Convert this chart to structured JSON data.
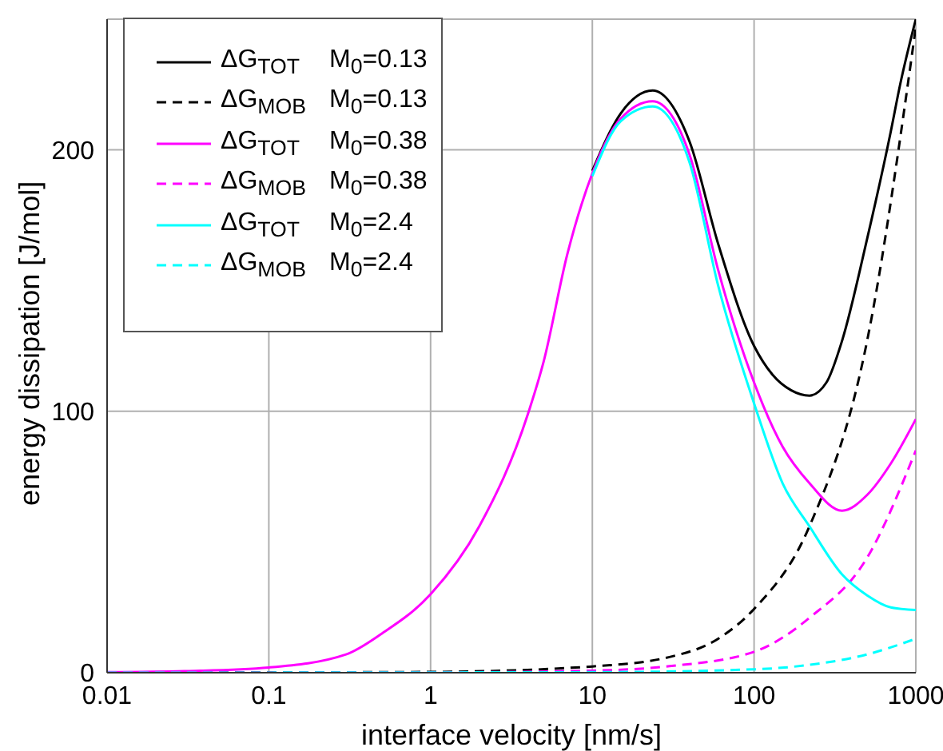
{
  "chart_data": {
    "type": "line",
    "xlabel": "interface velocity [nm/s]",
    "ylabel": "energy dissipation [J/mol]",
    "log": "x",
    "xlim": [
      0.01,
      1000
    ],
    "xticks": [
      0.01,
      0.1,
      1,
      10,
      100,
      1000
    ],
    "ylim": [
      0,
      250
    ],
    "yticks": [
      0,
      100,
      200
    ],
    "grid": true,
    "legend": "top left",
    "marker": "none",
    "series": [
      {
        "name": "ΔG$_{TOT}$ M$_{0}$=0.13",
        "color": "#000000",
        "line_style": "solid",
        "x": [
          10,
          15,
          23.6,
          40,
          60,
          100,
          130,
          170,
          220,
          280,
          350,
          500,
          700,
          800,
          1000
        ],
        "values": [
          192,
          214,
          222.7,
          203,
          164,
          125,
          114,
          108,
          106,
          111,
          127,
          166,
          207,
          225,
          250
        ]
      },
      {
        "name": "ΔG$_{MOB}$ M$_{0}$=0.13",
        "color": "#000000",
        "line_style": "dashed",
        "x": [
          0.01,
          1,
          10,
          30,
          60,
          100,
          220,
          500,
          1000
        ],
        "values": [
          0,
          0.3,
          2.4,
          6,
          13,
          24.4,
          56,
          127,
          247
        ]
      },
      {
        "name": "ΔG$_{TOT}$ M$_{0}$=0.38",
        "color": "#ff00ff",
        "line_style": "solid",
        "x": [
          0.01,
          0.03,
          0.1,
          0.3,
          0.5,
          1,
          2,
          4,
          5,
          7,
          10,
          15,
          23.6,
          40,
          60,
          100,
          150,
          220,
          350,
          500,
          700,
          1000
        ],
        "values": [
          0.2,
          0.6,
          2,
          7,
          15,
          30,
          56,
          99,
          119,
          160,
          191,
          212,
          218.6,
          198,
          154,
          111,
          86.5,
          72.5,
          62,
          68,
          80,
          97
        ]
      },
      {
        "name": "ΔG$_{MOB}$ M$_{0}$=0.38",
        "color": "#ff00ff",
        "line_style": "dashed",
        "x": [
          0.01,
          1,
          10,
          30,
          100,
          220,
          500,
          1000
        ],
        "values": [
          0,
          0.1,
          0.8,
          2.5,
          8,
          21,
          44,
          85
        ]
      },
      {
        "name": "ΔG$_{TOT}$ M$_{0}$=2.4",
        "color": "#00ffff",
        "line_style": "solid",
        "x": [
          10,
          15,
          23.6,
          40,
          60,
          100,
          150,
          220,
          350,
          500,
          700,
          1000
        ],
        "values": [
          190,
          211,
          216.6,
          195,
          148,
          103,
          72.5,
          56,
          37.6,
          29.6,
          25,
          24
        ]
      },
      {
        "name": "ΔG$_{MOB}$ M$_{0}$=2.4",
        "color": "#00ffff",
        "line_style": "dashed",
        "x": [
          0.01,
          10,
          100,
          220,
          500,
          1000
        ],
        "values": [
          0,
          0.2,
          1.3,
          3,
          7,
          13
        ]
      }
    ]
  }
}
